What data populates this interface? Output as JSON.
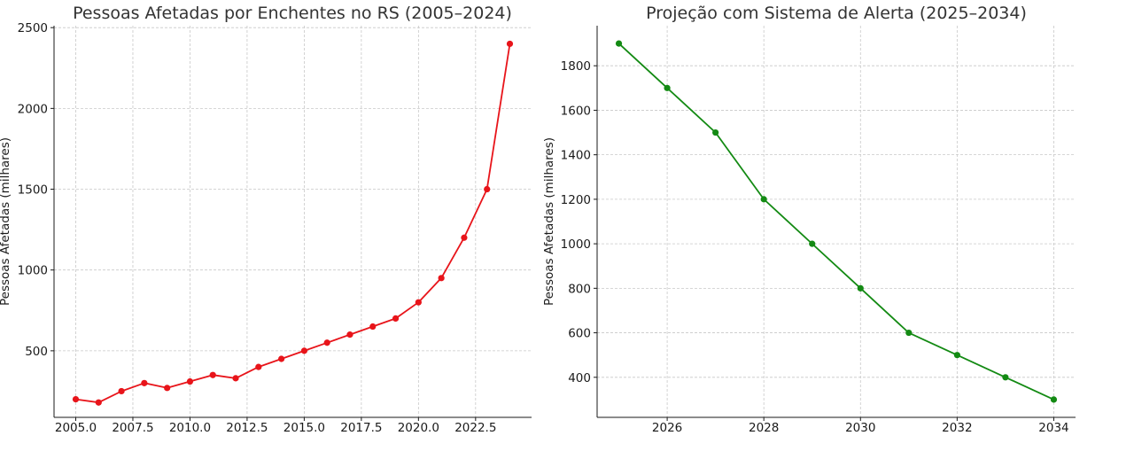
{
  "chart_data": [
    {
      "type": "line",
      "title": "Pessoas Afetadas por Enchentes no RS (2005–2024)",
      "xlabel": "",
      "ylabel": "Pessoas Afetadas (milhares)",
      "xlim": [
        2004.05,
        2024.95
      ],
      "ylim": [
        88,
        2512
      ],
      "xticks": [
        2005.0,
        2007.5,
        2010.0,
        2012.5,
        2015.0,
        2017.5,
        2020.0,
        2022.5
      ],
      "xtick_labels": [
        "2005.0",
        "2007.5",
        "2010.0",
        "2012.5",
        "2015.0",
        "2017.5",
        "2020.0",
        "2022.5"
      ],
      "yticks": [
        500,
        1000,
        1500,
        2000,
        2500
      ],
      "ytick_labels": [
        "500",
        "1000",
        "1500",
        "2000",
        "2500"
      ],
      "grid": true,
      "color": "#e8141a",
      "series": [
        {
          "x": [
            2005,
            2006,
            2007,
            2008,
            2009,
            2010,
            2011,
            2012,
            2013,
            2014,
            2015,
            2016,
            2017,
            2018,
            2019,
            2020,
            2021,
            2022,
            2023,
            2024
          ],
          "y": [
            200,
            180,
            250,
            300,
            270,
            310,
            350,
            330,
            400,
            450,
            500,
            550,
            600,
            650,
            700,
            800,
            950,
            1200,
            1500,
            2400
          ]
        }
      ]
    },
    {
      "type": "line",
      "title": "Projeção com Sistema de Alerta (2025–2034)",
      "xlabel": "",
      "ylabel": "Pessoas Afetadas (milhares)",
      "xlim": [
        2024.55,
        2034.45
      ],
      "ylim": [
        220,
        1980
      ],
      "xticks": [
        2026,
        2028,
        2030,
        2032,
        2034
      ],
      "xtick_labels": [
        "2026",
        "2028",
        "2030",
        "2032",
        "2034"
      ],
      "yticks": [
        400,
        600,
        800,
        1000,
        1200,
        1400,
        1600,
        1800
      ],
      "ytick_labels": [
        "400",
        "600",
        "800",
        "1000",
        "1200",
        "1400",
        "1600",
        "1800"
      ],
      "grid": true,
      "color": "#138a13",
      "series": [
        {
          "x": [
            2025,
            2026,
            2027,
            2028,
            2029,
            2030,
            2031,
            2032,
            2033,
            2034
          ],
          "y": [
            1900,
            1700,
            1500,
            1200,
            1000,
            800,
            600,
            500,
            400,
            300
          ]
        }
      ]
    }
  ]
}
